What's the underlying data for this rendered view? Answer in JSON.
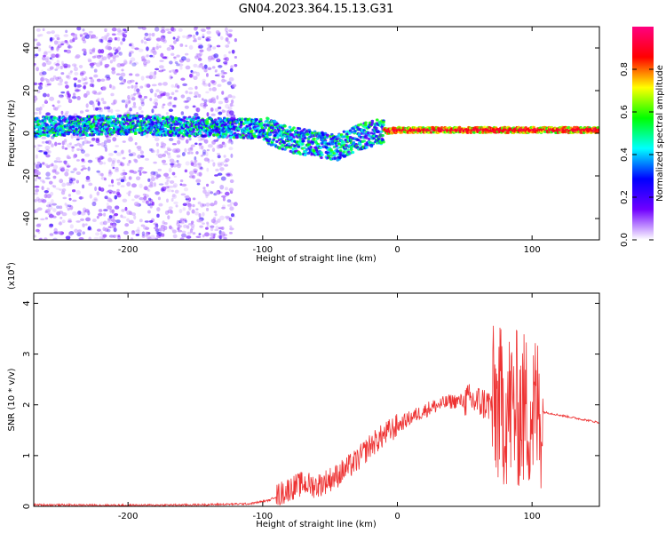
{
  "title": "GN04.2023.364.15.13.G31",
  "chart_data": [
    {
      "type": "heatmap",
      "xlabel": "Height of straight line (km)",
      "ylabel": "Frequency (Hz)",
      "xlim": [
        -270,
        150
      ],
      "ylim": [
        -50,
        50
      ],
      "x_ticks": [
        -200,
        -100,
        0,
        100
      ],
      "y_ticks": [
        -40,
        -20,
        0,
        20,
        40
      ],
      "colorbar": {
        "label": "Normalized spectral amplitude",
        "range": [
          0,
          1
        ],
        "ticks": [
          0.0,
          0.2,
          0.4,
          0.6,
          0.8
        ],
        "colormap": [
          "#ffffff",
          "#7000ff",
          "#0000ff",
          "#00ffff",
          "#00ff00",
          "#ffff00",
          "#ff0000",
          "#ff0080"
        ]
      },
      "features": {
        "broadband_noise_x_range": [
          -270,
          -120
        ],
        "band_center_frequency": [
          {
            "x": -270,
            "f": 3
          },
          {
            "x": -200,
            "f": 4
          },
          {
            "x": -150,
            "f": 3
          },
          {
            "x": -100,
            "f": 2
          },
          {
            "x": -80,
            "f": -3
          },
          {
            "x": -60,
            "f": -5
          },
          {
            "x": -45,
            "f": -7
          },
          {
            "x": -30,
            "f": -2
          },
          {
            "x": -10,
            "f": 1
          },
          {
            "x": 0,
            "f": 1.5
          },
          {
            "x": 50,
            "f": 1.5
          },
          {
            "x": 100,
            "f": 1.5
          },
          {
            "x": 150,
            "f": 1.5
          }
        ],
        "narrow_band_peak_x_range": [
          -10,
          150
        ]
      }
    },
    {
      "type": "line",
      "xlabel": "Height of straight line (km)",
      "ylabel": "SNR (10 * v/v)",
      "y_multiplier": "(x10",
      "y_multiplier_exp": "4",
      "y_multiplier_close": ")",
      "xlim": [
        -270,
        150
      ],
      "ylim": [
        0,
        4.2
      ],
      "x_ticks": [
        -200,
        -100,
        0,
        100
      ],
      "y_ticks": [
        0,
        1,
        2,
        3,
        4
      ],
      "color": "#ee3333",
      "envelope": [
        {
          "x": -270,
          "y": 0.03
        },
        {
          "x": -200,
          "y": 0.02
        },
        {
          "x": -150,
          "y": 0.03
        },
        {
          "x": -110,
          "y": 0.05
        },
        {
          "x": -95,
          "y": 0.12
        },
        {
          "x": -80,
          "y": 0.35
        },
        {
          "x": -70,
          "y": 0.45
        },
        {
          "x": -60,
          "y": 0.4
        },
        {
          "x": -45,
          "y": 0.6
        },
        {
          "x": -30,
          "y": 0.9
        },
        {
          "x": -20,
          "y": 1.2
        },
        {
          "x": -5,
          "y": 1.5
        },
        {
          "x": 10,
          "y": 1.75
        },
        {
          "x": 25,
          "y": 1.95
        },
        {
          "x": 40,
          "y": 2.07
        },
        {
          "x": 55,
          "y": 2.08
        },
        {
          "x": 70,
          "y": 2.0
        },
        {
          "x": 80,
          "y": 1.95
        },
        {
          "x": 90,
          "y": 1.9
        },
        {
          "x": 100,
          "y": 1.88
        },
        {
          "x": 110,
          "y": 1.85
        },
        {
          "x": 130,
          "y": 1.75
        },
        {
          "x": 150,
          "y": 1.65
        }
      ],
      "noisy_x_range": [
        -90,
        108
      ]
    }
  ]
}
